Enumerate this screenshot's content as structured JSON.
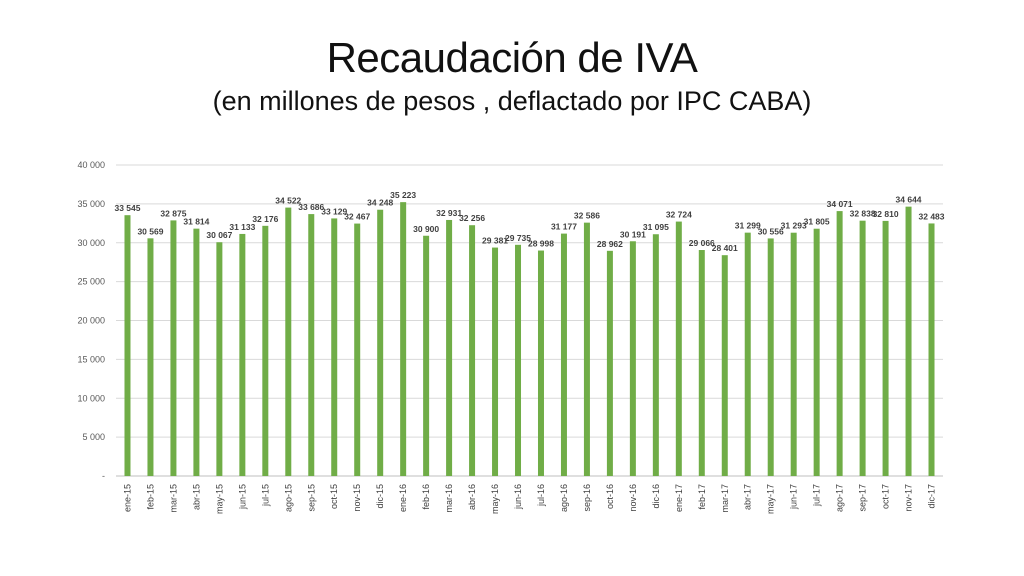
{
  "title": "Recaudación de IVA",
  "subtitle": "(en millones de pesos , deflactado por IPC CABA)",
  "colors": {
    "bar": "#70ad47",
    "grid": "#d9d9d9",
    "text": "#404040"
  },
  "chart_data": {
    "type": "bar",
    "title": "Recaudación de IVA",
    "subtitle": "(en millones de pesos , deflactado por IPC CABA)",
    "categories": [
      "ene-15",
      "feb-15",
      "mar-15",
      "abr-15",
      "may-15",
      "jun-15",
      "jul-15",
      "ago-15",
      "sep-15",
      "oct-15",
      "nov-15",
      "dic-15",
      "ene-16",
      "feb-16",
      "mar-16",
      "abr-16",
      "may-16",
      "jun-16",
      "jul-16",
      "ago-16",
      "sep-16",
      "oct-16",
      "nov-16",
      "dic-16",
      "ene-17",
      "feb-17",
      "mar-17",
      "abr-17",
      "may-17",
      "jun-17",
      "jul-17",
      "ago-17",
      "sep-17",
      "oct-17",
      "nov-17",
      "dic-17"
    ],
    "values": [
      33545,
      30569,
      32875,
      31814,
      30067,
      31133,
      32176,
      34522,
      33686,
      33129,
      32467,
      34248,
      35223,
      30900,
      32931,
      32256,
      29381,
      29735,
      28998,
      31177,
      32586,
      28962,
      30191,
      31095,
      32724,
      29066,
      28401,
      31299,
      30556,
      31293,
      31805,
      34071,
      32838,
      32810,
      34644,
      32483
    ],
    "value_labels": [
      "33 545",
      "30 569",
      "32 875",
      "31 814",
      "30 067",
      "31 133",
      "32 176",
      "34 522",
      "33 686",
      "33 129",
      "32 467",
      "34 248",
      "35 223",
      "30 900",
      "32 931",
      "32 256",
      "29 381",
      "29 735",
      "28 998",
      "31 177",
      "32 586",
      "28 962",
      "30 191",
      "31 095",
      "32 724",
      "29 066",
      "28 401",
      "31 299",
      "30 556",
      "31 293",
      "31 805",
      "34 071",
      "32 838",
      "32 810",
      "34 644",
      "32 483"
    ],
    "y_ticks": [
      0,
      5000,
      10000,
      15000,
      20000,
      25000,
      30000,
      35000,
      40000
    ],
    "y_tick_labels": [
      "-",
      "5 000",
      "10 000",
      "15 000",
      "20 000",
      "25 000",
      "30 000",
      "35 000",
      "40 000"
    ],
    "ylim": [
      0,
      40000
    ],
    "grid": true,
    "legend": "none"
  }
}
